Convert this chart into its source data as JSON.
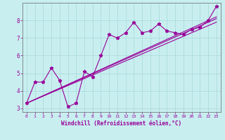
{
  "xlabel": "Windchill (Refroidissement éolien,°C)",
  "background_color": "#c8eef0",
  "grid_color": "#a8d8d8",
  "line_color": "#990099",
  "spine_color": "#666666",
  "xlim": [
    -0.5,
    23.5
  ],
  "ylim": [
    2.8,
    9.0
  ],
  "xticks": [
    0,
    1,
    2,
    3,
    4,
    5,
    6,
    7,
    8,
    9,
    10,
    11,
    12,
    13,
    14,
    15,
    16,
    17,
    18,
    19,
    20,
    21,
    22,
    23
  ],
  "yticks": [
    3,
    4,
    5,
    6,
    7,
    8
  ],
  "series1_x": [
    0,
    1,
    2,
    3,
    4,
    5,
    6,
    7,
    8,
    9,
    10,
    11,
    12,
    13,
    14,
    15,
    16,
    17,
    18,
    19,
    20,
    21,
    22,
    23
  ],
  "series1_y": [
    3.3,
    4.5,
    4.5,
    5.3,
    4.6,
    3.1,
    3.3,
    5.1,
    4.8,
    6.0,
    7.2,
    7.0,
    7.3,
    7.9,
    7.3,
    7.4,
    7.8,
    7.4,
    7.3,
    7.2,
    7.5,
    7.6,
    8.0,
    8.8
  ],
  "line2_x": [
    0,
    23
  ],
  "line2_y": [
    3.3,
    8.1
  ],
  "line3_x": [
    0,
    23
  ],
  "line3_y": [
    3.3,
    8.2
  ],
  "line4_x": [
    0,
    23
  ],
  "line4_y": [
    3.3,
    7.9
  ]
}
